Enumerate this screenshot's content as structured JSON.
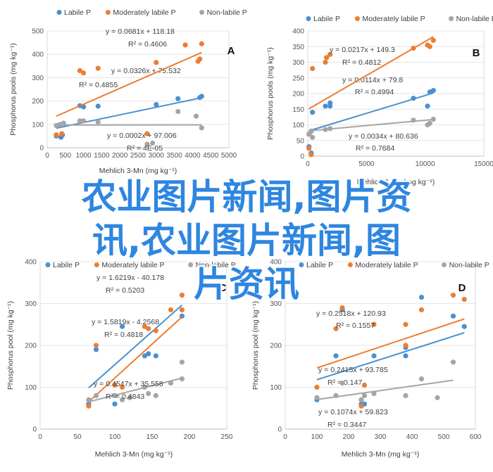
{
  "overlay": {
    "line1": "农业图片新闻,图片资",
    "line2": "讯,农业图片新闻,图",
    "line3": "片资讯"
  },
  "colors": {
    "labile": "#4a90d0",
    "moderate": "#ed7d31",
    "nonlabile": "#a5a5a5"
  },
  "chart_data": [
    {
      "panel": "A",
      "type": "scatter",
      "ylabel": "Phosphorus pools (mg kg⁻¹)",
      "xlabel": "Mehlich 3-Mn (mg kg⁻¹)",
      "xlim": [
        0,
        5000
      ],
      "ylim": [
        0,
        500
      ],
      "xticks": [
        "0",
        "500",
        "1000",
        "1500",
        "2000",
        "2500",
        "3000",
        "3500",
        "4000",
        "4500",
        "5000"
      ],
      "yticks": [
        "0",
        "100",
        "200",
        "300",
        "400",
        "500"
      ],
      "legend": [
        "Labile P",
        "Moderately labile P",
        "Non-labile P"
      ],
      "series": [
        {
          "name": "Labile P",
          "color": "#4a90d0",
          "points": [
            [
              250,
              50
            ],
            [
              380,
              45
            ],
            [
              420,
              55
            ],
            [
              900,
              180
            ],
            [
              1000,
              175
            ],
            [
              1400,
              178
            ],
            [
              3000,
              185
            ],
            [
              3600,
              210
            ],
            [
              4200,
              215
            ],
            [
              4250,
              220
            ]
          ],
          "fit": {
            "slope": 0.0326,
            "intercept": 75.532,
            "eq": "y = 0.0326x + 75.532",
            "r2": "R² = 0.4855"
          }
        },
        {
          "name": "Moderately labile P",
          "color": "#ed7d31",
          "points": [
            [
              250,
              55
            ],
            [
              400,
              60
            ],
            [
              900,
              330
            ],
            [
              1000,
              320
            ],
            [
              1400,
              340
            ],
            [
              2750,
              60
            ],
            [
              3000,
              365
            ],
            [
              3800,
              440
            ],
            [
              4150,
              370
            ],
            [
              4200,
              380
            ],
            [
              4250,
              445
            ]
          ],
          "fit": {
            "slope": 0.0681,
            "intercept": 118.18,
            "eq": "y = 0.0681x + 118.18",
            "r2": "R² = 0.4606"
          }
        },
        {
          "name": "Non-labile P",
          "color": "#a5a5a5",
          "points": [
            [
              250,
              95
            ],
            [
              350,
              100
            ],
            [
              450,
              105
            ],
            [
              900,
              115
            ],
            [
              1000,
              115
            ],
            [
              1400,
              110
            ],
            [
              2750,
              15
            ],
            [
              2900,
              20
            ],
            [
              3600,
              155
            ],
            [
              4100,
              135
            ],
            [
              4250,
              85
            ]
          ],
          "fit": {
            "slope": 0.0002,
            "intercept": 97.006,
            "eq": "y = 0.0002x + 97.006",
            "r2": "R² = 4E-05"
          }
        }
      ]
    },
    {
      "panel": "B",
      "type": "scatter",
      "ylabel": "Phosphorus pools (mg kg⁻¹)",
      "xlabel": "Mehlich 3-Mn (mg kg⁻¹)",
      "xlim": [
        0,
        15000
      ],
      "ylim": [
        0,
        400
      ],
      "xticks": [
        "0",
        "5000",
        "10000",
        "15000"
      ],
      "yticks": [
        "0",
        "50",
        "100",
        "150",
        "200",
        "250",
        "300",
        "350",
        "400"
      ],
      "legend": [
        "Labile P",
        "Moderately labile P",
        "Non-labile P"
      ],
      "series": [
        {
          "name": "Labile P",
          "color": "#4a90d0",
          "points": [
            [
              100,
              30
            ],
            [
              300,
              10
            ],
            [
              400,
              140
            ],
            [
              1500,
              160
            ],
            [
              1900,
              160
            ],
            [
              1900,
              170
            ],
            [
              9000,
              185
            ],
            [
              10200,
              160
            ],
            [
              10400,
              205
            ],
            [
              10700,
              210
            ]
          ],
          "fit": {
            "slope": 0.0114,
            "intercept": 79.8,
            "eq": "y = 0.0114x + 79.8",
            "r2": "R² = 0.4994"
          }
        },
        {
          "name": "Moderately labile P",
          "color": "#ed7d31",
          "points": [
            [
              100,
              25
            ],
            [
              300,
              5
            ],
            [
              400,
              280
            ],
            [
              1500,
              300
            ],
            [
              1600,
              315
            ],
            [
              1900,
              325
            ],
            [
              9000,
              345
            ],
            [
              10200,
              355
            ],
            [
              10400,
              350
            ],
            [
              10700,
              370
            ]
          ],
          "fit": {
            "slope": 0.0217,
            "intercept": 149.3,
            "eq": "y = 0.0217x + 149.3",
            "r2": "R² = 0.4812"
          }
        },
        {
          "name": "Non-labile P",
          "color": "#a5a5a5",
          "points": [
            [
              100,
              70
            ],
            [
              200,
              75
            ],
            [
              300,
              80
            ],
            [
              400,
              60
            ],
            [
              1500,
              85
            ],
            [
              1900,
              88
            ],
            [
              9000,
              115
            ],
            [
              10200,
              100
            ],
            [
              10400,
              105
            ],
            [
              10700,
              118
            ]
          ],
          "fit": {
            "slope": 0.0034,
            "intercept": 80.636,
            "eq": "y = 0.0034x + 80.636",
            "r2": "R² = 0.7684"
          }
        }
      ]
    },
    {
      "panel": "C",
      "type": "scatter",
      "ylabel": "Phosphorus pool (mg kg⁻¹)",
      "xlabel": "Mehlich 3-Mn (mg kg⁻¹)",
      "xlim": [
        0,
        250
      ],
      "ylim": [
        0,
        400
      ],
      "xticks": [
        "0",
        "50",
        "100",
        "150",
        "200",
        "250"
      ],
      "yticks": [
        "0",
        "100",
        "200",
        "300",
        "400"
      ],
      "legend": [
        "Labile P",
        "Moderately labile P",
        "Non-labile P"
      ],
      "series": [
        {
          "name": "Labile P",
          "color": "#4a90d0",
          "points": [
            [
              65,
              60
            ],
            [
              75,
              190
            ],
            [
              100,
              60
            ],
            [
              110,
              245
            ],
            [
              140,
              175
            ],
            [
              145,
              180
            ],
            [
              155,
              175
            ],
            [
              190,
              270
            ]
          ],
          "fit": {
            "slope": 1.5819,
            "intercept": -4.2568,
            "eq": "y = 1.5819x - 4.2568",
            "r2": "R² = 0.4818"
          }
        },
        {
          "name": "Moderately labile P",
          "color": "#ed7d31",
          "points": [
            [
              65,
              55
            ],
            [
              75,
              200
            ],
            [
              100,
              105
            ],
            [
              110,
              100
            ],
            [
              140,
              245
            ],
            [
              145,
              240
            ],
            [
              155,
              235
            ],
            [
              175,
              285
            ],
            [
              190,
              320
            ],
            [
              190,
              285
            ]
          ],
          "fit": {
            "slope": 1.6219,
            "intercept": -40.178,
            "eq": "y = 1.6219x - 40.178",
            "r2": "R² = 0.5203"
          }
        },
        {
          "name": "Non-labile P",
          "color": "#a5a5a5",
          "points": [
            [
              65,
              70
            ],
            [
              75,
              80
            ],
            [
              100,
              80
            ],
            [
              110,
              70
            ],
            [
              120,
              75
            ],
            [
              140,
              100
            ],
            [
              145,
              85
            ],
            [
              155,
              80
            ],
            [
              175,
              110
            ],
            [
              190,
              120
            ],
            [
              190,
              160
            ]
          ],
          "fit": {
            "slope": 0.4547,
            "intercept": 35.558,
            "eq": "y = 0.4547x + 35.558",
            "r2": "R² = 0.4843"
          }
        }
      ]
    },
    {
      "panel": "D",
      "type": "scatter",
      "ylabel": "Phosphorus pool (mg kg⁻¹)",
      "xlabel": "Mehlich 3-Mn (mg kg⁻¹)",
      "xlim": [
        0,
        600
      ],
      "ylim": [
        0,
        400
      ],
      "xticks": [
        "0",
        "100",
        "200",
        "300",
        "400",
        "500",
        "600"
      ],
      "yticks": [
        "0",
        "100",
        "200",
        "300",
        "400"
      ],
      "legend": [
        "Labile P",
        "Moderately labile P",
        "Non-labile P"
      ],
      "series": [
        {
          "name": "Labile P",
          "color": "#4a90d0",
          "points": [
            [
              100,
              70
            ],
            [
              160,
              175
            ],
            [
              180,
              285
            ],
            [
              240,
              60
            ],
            [
              250,
              60
            ],
            [
              280,
              175
            ],
            [
              380,
              195
            ],
            [
              380,
              175
            ],
            [
              430,
              315
            ],
            [
              530,
              270
            ],
            [
              565,
              245
            ]
          ],
          "fit": {
            "slope": 0.2415,
            "intercept": 93.785,
            "eq": "y = 0.2415x + 93.785",
            "r2": "R² = 0.147"
          }
        },
        {
          "name": "Moderately labile P",
          "color": "#ed7d31",
          "points": [
            [
              100,
              100
            ],
            [
              160,
              240
            ],
            [
              180,
              290
            ],
            [
              240,
              55
            ],
            [
              250,
              105
            ],
            [
              280,
              250
            ],
            [
              380,
              200
            ],
            [
              380,
              250
            ],
            [
              430,
              285
            ],
            [
              530,
              320
            ],
            [
              565,
              310
            ]
          ],
          "fit": {
            "slope": 0.2518,
            "intercept": 120.93,
            "eq": "y = 0.2518x + 120.93",
            "r2": "R² = 0.1557"
          }
        },
        {
          "name": "Non-labile P",
          "color": "#a5a5a5",
          "points": [
            [
              100,
              75
            ],
            [
              160,
              80
            ],
            [
              180,
              110
            ],
            [
              240,
              70
            ],
            [
              250,
              80
            ],
            [
              280,
              85
            ],
            [
              380,
              80
            ],
            [
              430,
              120
            ],
            [
              480,
              75
            ],
            [
              530,
              160
            ]
          ],
          "fit": {
            "slope": 0.1074,
            "intercept": 59.823,
            "eq": "y = 0.1074x + 59.823",
            "r2": "R² = 0.3447"
          }
        }
      ]
    }
  ]
}
